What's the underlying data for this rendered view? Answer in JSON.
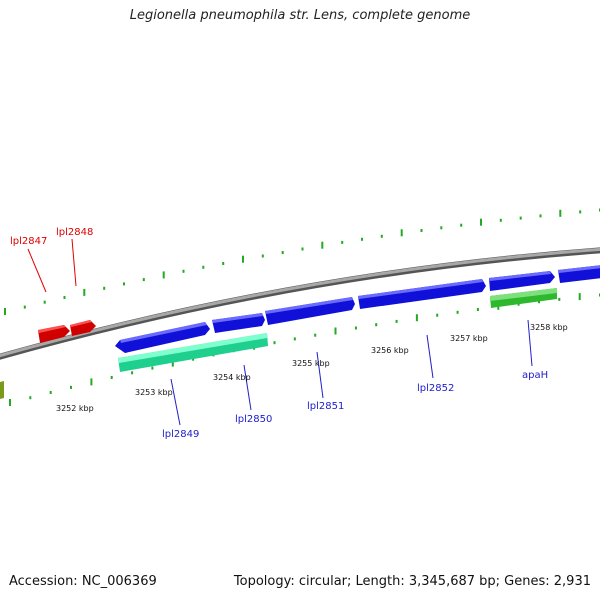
{
  "title": "Legionella pneumophila str. Lens, complete genome",
  "footer": {
    "accession": "Accession: NC_006369",
    "summary": "Topology: circular; Length: 3,345,687 bp; Genes: 2,931"
  },
  "colors": {
    "reverse_gene": "#e00000",
    "forward_gene": "#1010e0",
    "cds_green_light": "#22e6a0",
    "cds_green": "#44cc33",
    "backbone": "#808080",
    "tick": "#22aa22"
  },
  "ticks": [
    "3252 kbp",
    "3253 kbp",
    "3254 kbp",
    "3255 kbp",
    "3256 kbp",
    "3257 kbp",
    "3258 kbp"
  ],
  "genes": [
    {
      "name": "lpl2847",
      "strand": "reverse"
    },
    {
      "name": "lpl2848",
      "strand": "reverse"
    },
    {
      "name": "lpl2849",
      "strand": "forward"
    },
    {
      "name": "lpl2850",
      "strand": "forward"
    },
    {
      "name": "lpl2851",
      "strand": "forward"
    },
    {
      "name": "lpl2852",
      "strand": "forward"
    },
    {
      "name": "apaH",
      "strand": "forward"
    }
  ]
}
